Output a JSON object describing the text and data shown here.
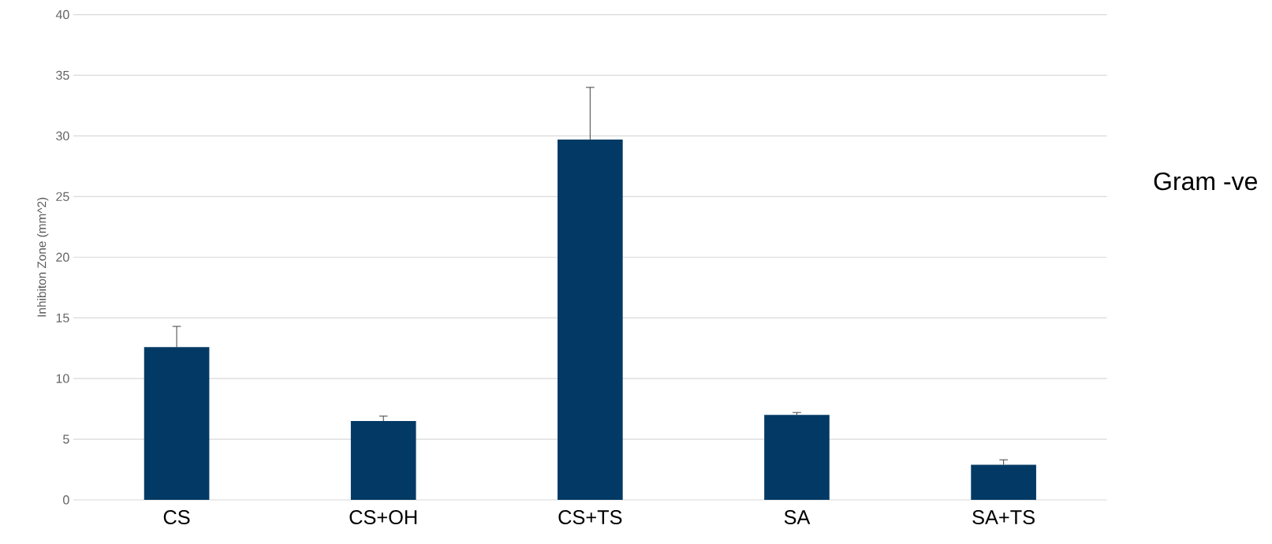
{
  "chart_data": {
    "type": "bar",
    "categories": [
      "CS",
      "CS+OH",
      "CS+TS",
      "SA",
      "SA+TS"
    ],
    "values": [
      12.6,
      6.5,
      29.7,
      7.0,
      2.9
    ],
    "errors": [
      [
        12.6,
        14.3
      ],
      [
        6.5,
        6.9
      ],
      [
        29.7,
        34.0
      ],
      [
        7.0,
        7.2
      ],
      [
        2.9,
        3.3
      ]
    ],
    "color": "#033a65",
    "ylabel": "Inhibiton Zone (mm^2)",
    "annotations": [
      "Gram -ve"
    ],
    "ylim": [
      0,
      40
    ],
    "yticks": [
      0,
      5,
      10,
      15,
      20,
      25,
      30,
      35,
      40
    ],
    "grid": "y"
  }
}
